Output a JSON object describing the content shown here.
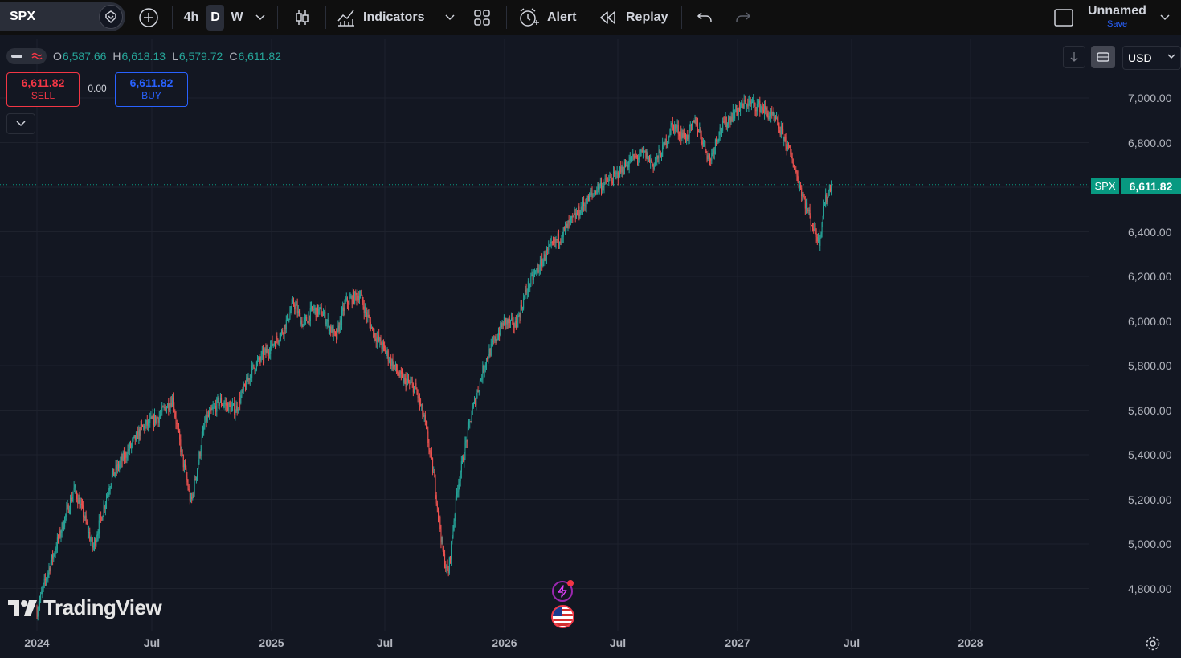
{
  "toolbar": {
    "symbol": "SPX",
    "intervals": [
      {
        "label": "4h",
        "active": false
      },
      {
        "label": "D",
        "active": true
      },
      {
        "label": "W",
        "active": false
      }
    ],
    "indicators_label": "Indicators",
    "alert_label": "Alert",
    "replay_label": "Replay",
    "layout_name": "Unnamed",
    "save_label": "Save"
  },
  "legend": {
    "open_key": "O",
    "open": "6,587.66",
    "high_key": "H",
    "high": "6,618.13",
    "low_key": "L",
    "low": "6,579.72",
    "close_key": "C",
    "close": "6,611.82"
  },
  "trade": {
    "sell_price": "6,611.82",
    "sell_label": "SELL",
    "spread": "0.00",
    "buy_price": "6,611.82",
    "buy_label": "BUY"
  },
  "scale": {
    "currency": "USD",
    "price_labels": [
      "7,000.00",
      "6,800.00",
      "6,600.00",
      "6,400.00",
      "6,200.00",
      "6,000.00",
      "5,800.00",
      "5,600.00",
      "5,400.00",
      "5,200.00",
      "5,000.00",
      "4,800.00"
    ],
    "last_price_symbol": "SPX",
    "last_price": "6,611.82"
  },
  "time_axis": {
    "labels": [
      "2024",
      "Jul",
      "2025",
      "Jul",
      "2026",
      "Jul",
      "2027",
      "Jul",
      "2028"
    ]
  },
  "watermark": "TradingView",
  "colors": {
    "up": "#26a69a",
    "down": "#ef5350",
    "background": "#131722",
    "grid": "#1e222d",
    "accent": "#2962ff"
  },
  "chart_data": {
    "type": "candlestick",
    "symbol": "SPX",
    "interval": "D",
    "ylim": [
      4700,
      7050
    ],
    "y_ticks": [
      4800,
      5000,
      5200,
      5400,
      5600,
      5800,
      6000,
      6200,
      6400,
      6600,
      6800,
      7000
    ],
    "x_ticks": [
      "2024",
      "Jul",
      "2025",
      "Jul",
      "2026",
      "Jul",
      "2027",
      "Jul",
      "2028"
    ],
    "last_price": 6611.82,
    "path": [
      [
        0.0,
        4700
      ],
      [
        0.04,
        4850
      ],
      [
        0.1,
        5050
      ],
      [
        0.16,
        5250
      ],
      [
        0.2,
        5130
      ],
      [
        0.24,
        4980
      ],
      [
        0.32,
        5300
      ],
      [
        0.45,
        5520
      ],
      [
        0.52,
        5570
      ],
      [
        0.58,
        5650
      ],
      [
        0.62,
        5400
      ],
      [
        0.66,
        5180
      ],
      [
        0.72,
        5550
      ],
      [
        0.78,
        5640
      ],
      [
        0.85,
        5600
      ],
      [
        0.92,
        5780
      ],
      [
        0.98,
        5860
      ],
      [
        1.05,
        5950
      ],
      [
        1.1,
        6080
      ],
      [
        1.14,
        5980
      ],
      [
        1.18,
        6050
      ],
      [
        1.22,
        6040
      ],
      [
        1.28,
        5920
      ],
      [
        1.32,
        6080
      ],
      [
        1.38,
        6120
      ],
      [
        1.44,
        5950
      ],
      [
        1.5,
        5850
      ],
      [
        1.56,
        5740
      ],
      [
        1.62,
        5700
      ],
      [
        1.66,
        5550
      ],
      [
        1.7,
        5300
      ],
      [
        1.74,
        4950
      ],
      [
        1.76,
        4860
      ],
      [
        1.8,
        5250
      ],
      [
        1.86,
        5580
      ],
      [
        1.92,
        5820
      ],
      [
        2.0,
        6000
      ],
      [
        2.05,
        5980
      ],
      [
        2.1,
        6150
      ],
      [
        2.18,
        6300
      ],
      [
        2.24,
        6380
      ],
      [
        2.32,
        6490
      ],
      [
        2.4,
        6600
      ],
      [
        2.48,
        6650
      ],
      [
        2.54,
        6720
      ],
      [
        2.6,
        6750
      ],
      [
        2.64,
        6700
      ],
      [
        2.68,
        6770
      ],
      [
        2.72,
        6880
      ],
      [
        2.78,
        6820
      ],
      [
        2.82,
        6900
      ],
      [
        2.88,
        6720
      ],
      [
        2.92,
        6850
      ],
      [
        2.98,
        6930
      ],
      [
        3.04,
        6980
      ],
      [
        3.1,
        6960
      ],
      [
        3.16,
        6900
      ],
      [
        3.2,
        6820
      ],
      [
        3.24,
        6700
      ],
      [
        3.28,
        6560
      ],
      [
        3.32,
        6430
      ],
      [
        3.35,
        6360
      ],
      [
        3.37,
        6520
      ],
      [
        3.4,
        6612
      ]
    ]
  }
}
